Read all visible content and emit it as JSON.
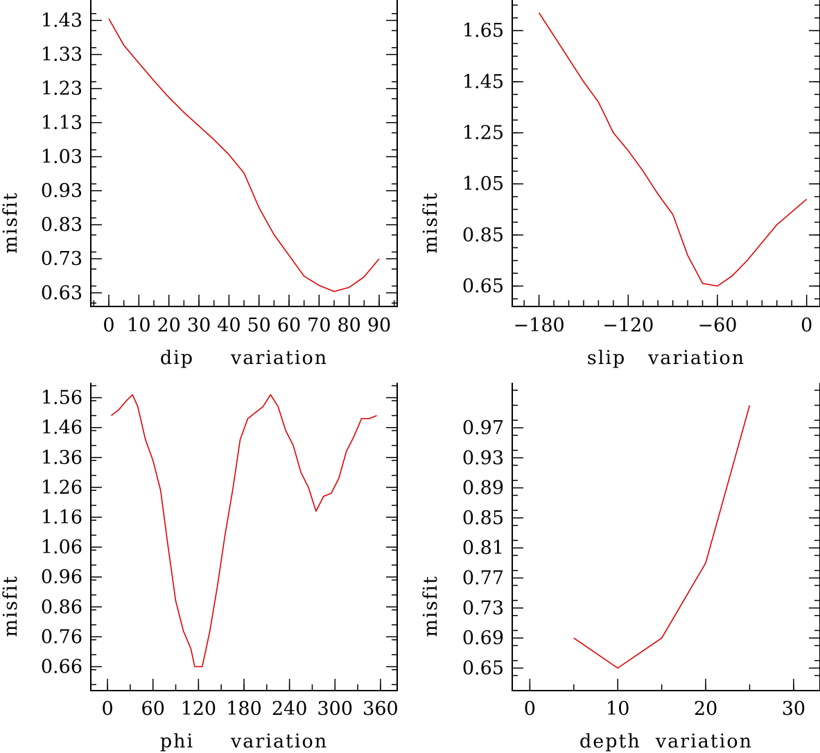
{
  "chart_data": [
    {
      "type": "line",
      "title": "",
      "xlabel": "dip     variation",
      "ylabel": "misfit",
      "line_color": "#e00000",
      "xlim": [
        -6,
        96
      ],
      "ylim": [
        0.59,
        1.49
      ],
      "x_ticks": [
        0,
        10,
        20,
        30,
        40,
        50,
        60,
        70,
        80,
        90
      ],
      "x_tick_labels": [
        "0",
        "10",
        "20",
        "30",
        "40",
        "50",
        "60",
        "70",
        "80",
        "90"
      ],
      "x_minor_step": 5,
      "y_ticks": [
        0.63,
        0.73,
        0.83,
        0.93,
        1.03,
        1.13,
        1.23,
        1.33,
        1.43
      ],
      "y_tick_labels": [
        "0.63",
        "0.73",
        "0.83",
        "0.93",
        "1.03",
        "1.13",
        "1.23",
        "1.33",
        "1.43"
      ],
      "y_minor_step": 0.05,
      "series": [
        {
          "name": "misfit",
          "x": [
            0,
            5,
            10,
            15,
            20,
            25,
            30,
            35,
            40,
            45,
            50,
            55,
            60,
            65,
            70,
            75,
            80,
            85,
            90
          ],
          "y": [
            1.435,
            1.357,
            1.305,
            1.253,
            1.204,
            1.16,
            1.12,
            1.08,
            1.036,
            0.982,
            0.88,
            0.801,
            0.74,
            0.679,
            0.652,
            0.634,
            0.646,
            0.677,
            0.73
          ]
        }
      ]
    },
    {
      "type": "line",
      "title": "",
      "xlabel": "slip   variation",
      "ylabel": "misfit",
      "line_color": "#e00000",
      "xlim": [
        -198,
        9
      ],
      "ylim": [
        0.57,
        1.77
      ],
      "x_ticks": [
        -180,
        -120,
        -60,
        0
      ],
      "x_tick_labels": [
        "−180",
        "−120",
        "−60",
        "0"
      ],
      "x_minor_step": 10,
      "y_ticks": [
        0.65,
        0.85,
        1.05,
        1.25,
        1.45,
        1.65
      ],
      "y_tick_labels": [
        "0.65",
        "0.85",
        "1.05",
        "1.25",
        "1.45",
        "1.65"
      ],
      "y_minor_step": 0.05,
      "series": [
        {
          "name": "misfit",
          "x": [
            -180,
            -170,
            -160,
            -150,
            -140,
            -130,
            -120,
            -110,
            -100,
            -90,
            -80,
            -70,
            -60,
            -50,
            -40,
            -30,
            -20,
            -10,
            0
          ],
          "y": [
            1.72,
            1.63,
            1.54,
            1.45,
            1.37,
            1.25,
            1.18,
            1.1,
            1.01,
            0.93,
            0.77,
            0.66,
            0.65,
            0.69,
            0.75,
            0.82,
            0.89,
            0.94,
            0.99
          ]
        }
      ]
    },
    {
      "type": "line",
      "title": "",
      "xlabel": "phi     variation",
      "ylabel": "misfit",
      "line_color": "#e00000",
      "xlim": [
        -22,
        382
      ],
      "ylim": [
        0.58,
        1.61
      ],
      "x_ticks": [
        0,
        60,
        120,
        180,
        240,
        300,
        360
      ],
      "x_tick_labels": [
        "0",
        "60",
        "120",
        "180",
        "240",
        "300",
        "360"
      ],
      "x_minor_step": 30,
      "y_ticks": [
        0.66,
        0.76,
        0.86,
        0.96,
        1.06,
        1.16,
        1.26,
        1.36,
        1.46,
        1.56
      ],
      "y_tick_labels": [
        "0.66",
        "0.76",
        "0.86",
        "0.96",
        "1.06",
        "1.16",
        "1.26",
        "1.36",
        "1.46",
        "1.56"
      ],
      "y_minor_step": 0.05,
      "series": [
        {
          "name": "misfit",
          "x": [
            5,
            15,
            25,
            33,
            40,
            50,
            60,
            70,
            80,
            90,
            100,
            110,
            115,
            125,
            135,
            145,
            155,
            165,
            175,
            185,
            195,
            205,
            215,
            225,
            235,
            245,
            255,
            265,
            275,
            285,
            295,
            305,
            315,
            325,
            335,
            345,
            355
          ],
          "y": [
            1.5,
            1.52,
            1.55,
            1.57,
            1.53,
            1.42,
            1.35,
            1.25,
            1.06,
            0.88,
            0.78,
            0.72,
            0.66,
            0.66,
            0.78,
            0.93,
            1.1,
            1.25,
            1.42,
            1.49,
            1.51,
            1.53,
            1.57,
            1.53,
            1.45,
            1.4,
            1.31,
            1.26,
            1.18,
            1.23,
            1.24,
            1.29,
            1.38,
            1.43,
            1.49,
            1.49,
            1.5
          ]
        }
      ]
    },
    {
      "type": "line",
      "title": "",
      "xlabel": "depth  variation",
      "ylabel": "misfit",
      "line_color": "#e00000",
      "xlim": [
        -2,
        33
      ],
      "ylim": [
        0.62,
        1.03
      ],
      "x_ticks": [
        0,
        10,
        20,
        30
      ],
      "x_tick_labels": [
        "0",
        "10",
        "20",
        "30"
      ],
      "x_minor_step": 5,
      "y_ticks": [
        0.65,
        0.69,
        0.73,
        0.77,
        0.81,
        0.85,
        0.89,
        0.93,
        0.97
      ],
      "y_tick_labels": [
        "0.65",
        "0.69",
        "0.73",
        "0.77",
        "0.81",
        "0.85",
        "0.89",
        "0.93",
        "0.97"
      ],
      "y_minor_step": 0.02,
      "series": [
        {
          "name": "misfit",
          "x": [
            5,
            10,
            15,
            20,
            25
          ],
          "y": [
            0.69,
            0.65,
            0.69,
            0.79,
            1.0
          ]
        }
      ]
    }
  ]
}
